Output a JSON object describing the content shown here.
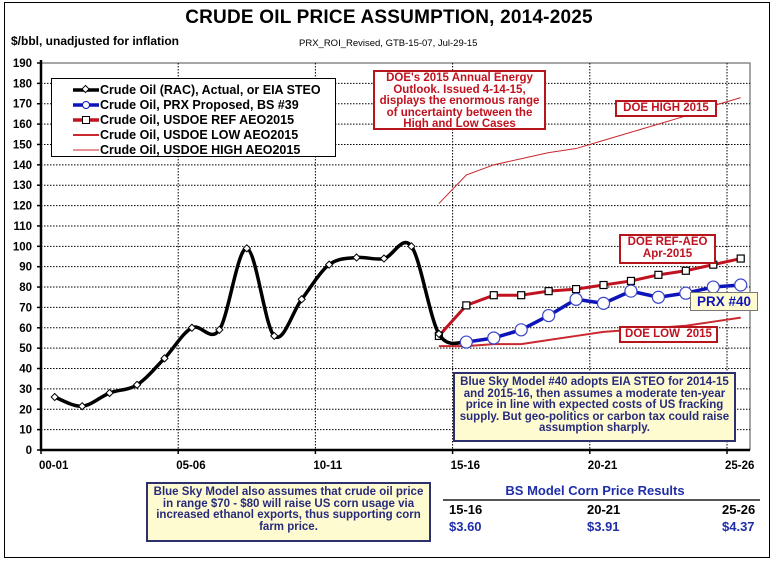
{
  "header": {
    "title": "CRUDE OIL PRICE ASSUMPTION, 2014-2025",
    "units": "$/bbl, unadjusted for inflation",
    "source": "PRX_ROI_Revised, GTB-15-07, Jul-29-15"
  },
  "colors": {
    "actual": "#000000",
    "prx": "#0d14b8",
    "ref": "#c1121f",
    "low": "#c9282f",
    "high": "#c9282f",
    "note_red": "#c1121f",
    "note_blue": "#272b7d",
    "note_bg": "#fffbd0"
  },
  "legend": [
    {
      "label": "Crude Oil (RAC), Actual, or EIA STEO",
      "series": "actual",
      "marker": "diamond"
    },
    {
      "label": "Crude Oil, PRX Proposed, BS #39",
      "series": "prx",
      "marker": "circle"
    },
    {
      "label": "Crude Oil, USDOE REF AEO2015",
      "series": "ref",
      "marker": "square"
    },
    {
      "label": "Crude Oil, USDOE LOW AEO2015",
      "series": "low",
      "marker": "none"
    },
    {
      "label": "Crude Oil, USDOE HIGH AEO2015",
      "series": "high",
      "marker": "none"
    }
  ],
  "annotations": {
    "doe_outlook": "DOE's 2015 Annual Energy Outlook. Issued 4-14-15, displays the enormous range of uncertainty between the High and Low Cases",
    "doe_high": "DOE HIGH 2015",
    "doe_ref_line1": "DOE REF-AEO",
    "doe_ref_line2": "Apr-2015",
    "doe_low": "DOE LOW  2015",
    "prx40": "PRX #40",
    "bs40_note": "Blue Sky Model #40 adopts EIA STEO for 2014-15 and 2015-16,  then assumes a moderate ten-year price in line with expected costs of US fracking supply. But geo-politics or carbon tax could raise assumption sharply.",
    "corn_note": "Blue Sky Model also assumes that crude oil price in range $70 - $80 will raise US corn usage via increased ethanol exports, thus supporting corn farm price."
  },
  "corn_results": {
    "title": "BS Model Corn Price Results",
    "columns": [
      "15-16",
      "20-21",
      "25-26"
    ],
    "values": [
      "$3.60",
      "$3.91",
      "$4.37"
    ]
  },
  "chart_data": {
    "type": "line",
    "title": "CRUDE OIL PRICE ASSUMPTION, 2014-2025",
    "xlabel": "",
    "ylabel": "$/bbl, unadjusted for inflation",
    "ylim": [
      0,
      190
    ],
    "yticks": [
      0,
      10,
      20,
      30,
      40,
      50,
      60,
      70,
      80,
      90,
      100,
      110,
      120,
      130,
      140,
      150,
      160,
      170,
      180,
      190
    ],
    "x_tick_labels": [
      "00-01",
      "05-06",
      "10-11",
      "15-16",
      "20-21",
      "25-26"
    ],
    "x_tick_years_index": [
      0,
      5,
      10,
      15,
      20,
      25
    ],
    "categories": [
      "00-01",
      "01-02",
      "02-03",
      "03-04",
      "04-05",
      "05-06",
      "06-07",
      "07-08",
      "08-09",
      "09-10",
      "10-11",
      "11-12",
      "12-13",
      "13-14",
      "14-15",
      "15-16",
      "16-17",
      "17-18",
      "18-19",
      "19-20",
      "20-21",
      "21-22",
      "22-23",
      "23-24",
      "24-25",
      "25-26"
    ],
    "grid": true,
    "legend_position": "top-left",
    "series": [
      {
        "name": "Crude Oil (RAC), Actual, or EIA STEO",
        "key": "actual",
        "start_index": 0,
        "values": [
          26,
          21.5,
          28,
          32,
          45,
          60,
          59,
          99,
          56,
          74,
          91,
          94.5,
          94,
          100,
          57,
          53
        ]
      },
      {
        "name": "Crude Oil, PRX Proposed, BS #39",
        "key": "prx",
        "start_index": 15,
        "values": [
          53,
          55,
          59,
          66,
          74,
          72,
          78,
          75,
          77,
          80,
          81
        ]
      },
      {
        "name": "Crude Oil, USDOE REF AEO2015",
        "key": "ref",
        "start_index": 14,
        "values": [
          56,
          71,
          76,
          76,
          78,
          79,
          81,
          83,
          86,
          88,
          91,
          94
        ]
      },
      {
        "name": "Crude Oil, USDOE LOW AEO2015",
        "key": "low",
        "start_index": 14,
        "values": [
          51,
          51,
          52,
          52,
          54,
          56,
          58,
          59,
          60,
          61,
          63,
          65
        ]
      },
      {
        "name": "Crude Oil, USDOE HIGH AEO2015",
        "key": "high",
        "start_index": 14,
        "values": [
          121,
          135,
          140,
          143,
          146,
          148,
          152,
          156,
          160,
          164,
          169,
          173
        ]
      }
    ]
  }
}
